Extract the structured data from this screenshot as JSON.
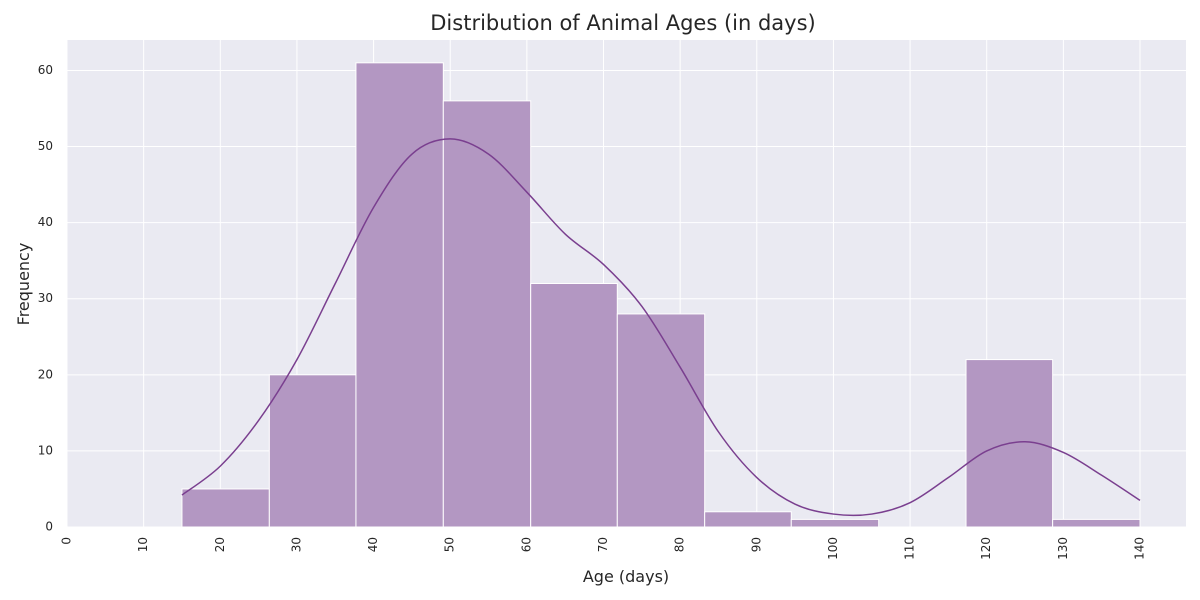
{
  "chart_data": {
    "type": "bar",
    "title": "Distribution of Animal Ages (in days)",
    "xlabel": "Age (days)",
    "ylabel": "Frequency",
    "xlim": [
      0,
      146
    ],
    "ylim": [
      0,
      64
    ],
    "x_ticks": [
      0,
      10,
      20,
      30,
      40,
      50,
      60,
      70,
      80,
      90,
      100,
      110,
      120,
      130,
      140
    ],
    "y_ticks": [
      0,
      10,
      20,
      30,
      40,
      50,
      60
    ],
    "bins": [
      {
        "start": 15.0,
        "end": 26.4,
        "count": 5
      },
      {
        "start": 26.4,
        "end": 37.7,
        "count": 20
      },
      {
        "start": 37.7,
        "end": 49.1,
        "count": 61
      },
      {
        "start": 49.1,
        "end": 60.5,
        "count": 56
      },
      {
        "start": 60.5,
        "end": 71.8,
        "count": 32
      },
      {
        "start": 71.8,
        "end": 83.2,
        "count": 28
      },
      {
        "start": 83.2,
        "end": 94.5,
        "count": 2
      },
      {
        "start": 94.5,
        "end": 105.9,
        "count": 1
      },
      {
        "start": 105.9,
        "end": 117.3,
        "count": 0
      },
      {
        "start": 117.3,
        "end": 128.6,
        "count": 22
      },
      {
        "start": 128.6,
        "end": 140.0,
        "count": 1
      }
    ],
    "kde": {
      "x": [
        15,
        20,
        25,
        30,
        35,
        40,
        45,
        50,
        55,
        60,
        65,
        70,
        75,
        80,
        85,
        90,
        95,
        100,
        105,
        110,
        115,
        120,
        125,
        130,
        135,
        140
      ],
      "y": [
        4.2,
        8,
        14,
        22,
        32,
        42,
        49,
        51,
        49,
        44,
        38.5,
        34.5,
        29,
        21,
        12.5,
        6.5,
        3,
        1.7,
        1.7,
        3.2,
        6.5,
        10,
        11.2,
        9.8,
        6.8,
        3.5
      ]
    },
    "grid": true,
    "colors": {
      "bar_fill": "#b397c2",
      "bar_edge": "#ffffff",
      "kde_line": "#7a3f8f",
      "plot_background": "#eaeaf2",
      "grid": "#ffffff"
    }
  }
}
